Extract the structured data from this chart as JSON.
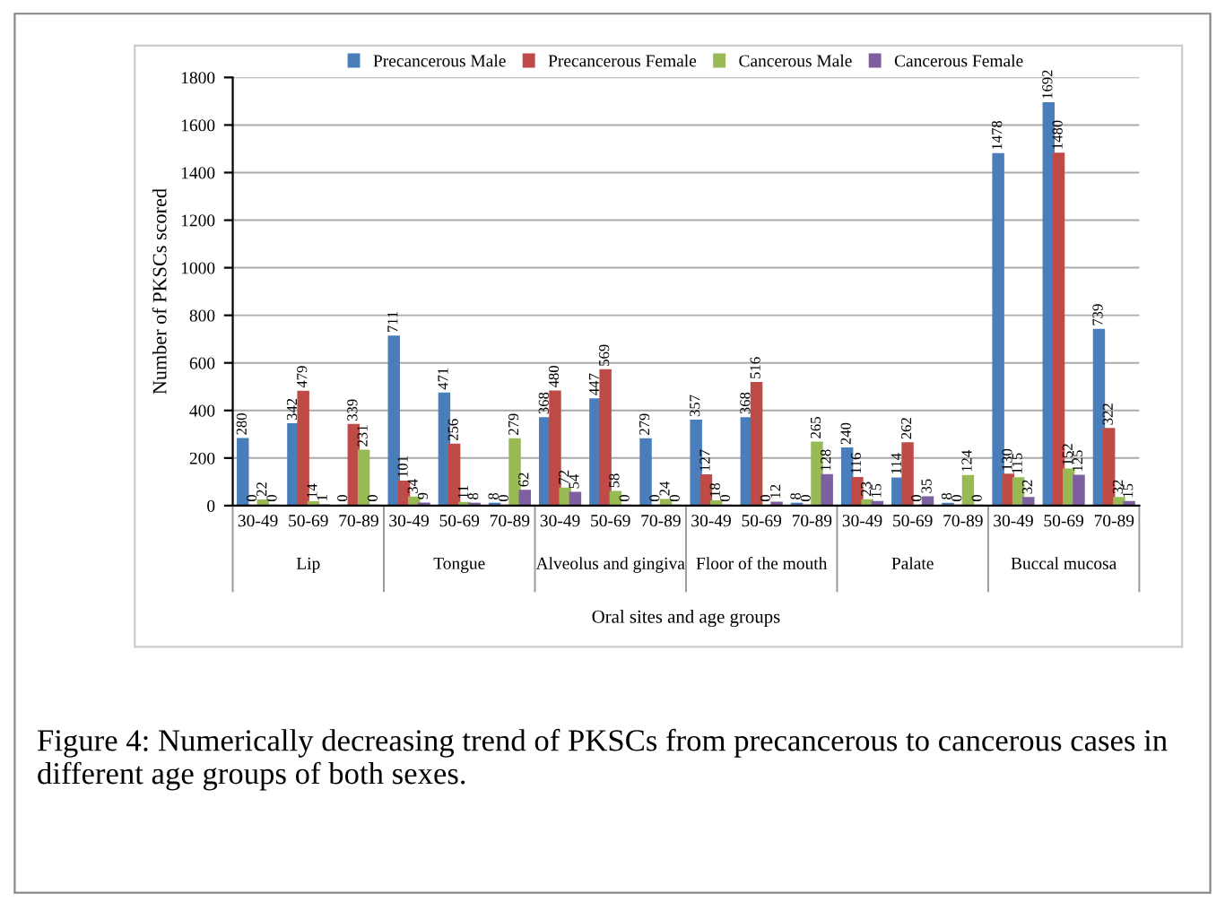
{
  "chart_data": {
    "type": "bar",
    "xlabel": "Oral sites and age groups",
    "ylabel": "Number of PKSCs scored",
    "categories": [
      "30-49",
      "50-69",
      "70-89",
      "30-49",
      "50-69",
      "70-89",
      "30-49",
      "50-69",
      "70-89",
      "30-49",
      "50-69",
      "70-89",
      "30-49",
      "50-69",
      "70-89",
      "30-49",
      "50-69",
      "70-89"
    ],
    "series": [
      {
        "name": "Precancerous Male",
        "color": "#4a7ebb",
        "values": [
          280,
          342,
          0,
          711,
          471,
          8,
          368,
          447,
          279,
          357,
          368,
          8,
          240,
          114,
          8,
          1478,
          1692,
          739
        ]
      },
      {
        "name": "Precancerous Female",
        "color": "#be4b48",
        "values": [
          0,
          479,
          339,
          101,
          256,
          0,
          480,
          569,
          0,
          127,
          516,
          0,
          116,
          262,
          0,
          130,
          1480,
          322
        ]
      },
      {
        "name": "Cancerous Male",
        "color": "#98b954",
        "values": [
          22,
          14,
          231,
          34,
          11,
          279,
          72,
          58,
          24,
          18,
          0,
          265,
          23,
          0,
          124,
          115,
          152,
          32
        ]
      },
      {
        "name": "Cancerous Female",
        "color": "#7d60a0",
        "values": [
          0,
          1,
          0,
          9,
          8,
          62,
          54,
          0,
          0,
          0,
          12,
          128,
          15,
          35,
          0,
          32,
          125,
          15
        ]
      }
    ],
    "annotations": [
      "Lip",
      "Tongue",
      "Alveolus and gingiva",
      "Floor of the mouth",
      "Palate",
      "Buccal mucosa",
      "Figure 4: Numerically decreasing trend of PKSCs from precancerous to cancerous cases in different age groups of both sexes."
    ],
    "ylim": [
      0,
      1800
    ],
    "yticks": [
      0,
      200,
      400,
      600,
      800,
      1000,
      1200,
      1400,
      1600,
      1800
    ],
    "grid": "y",
    "legend": "top",
    "data_labels": true
  }
}
